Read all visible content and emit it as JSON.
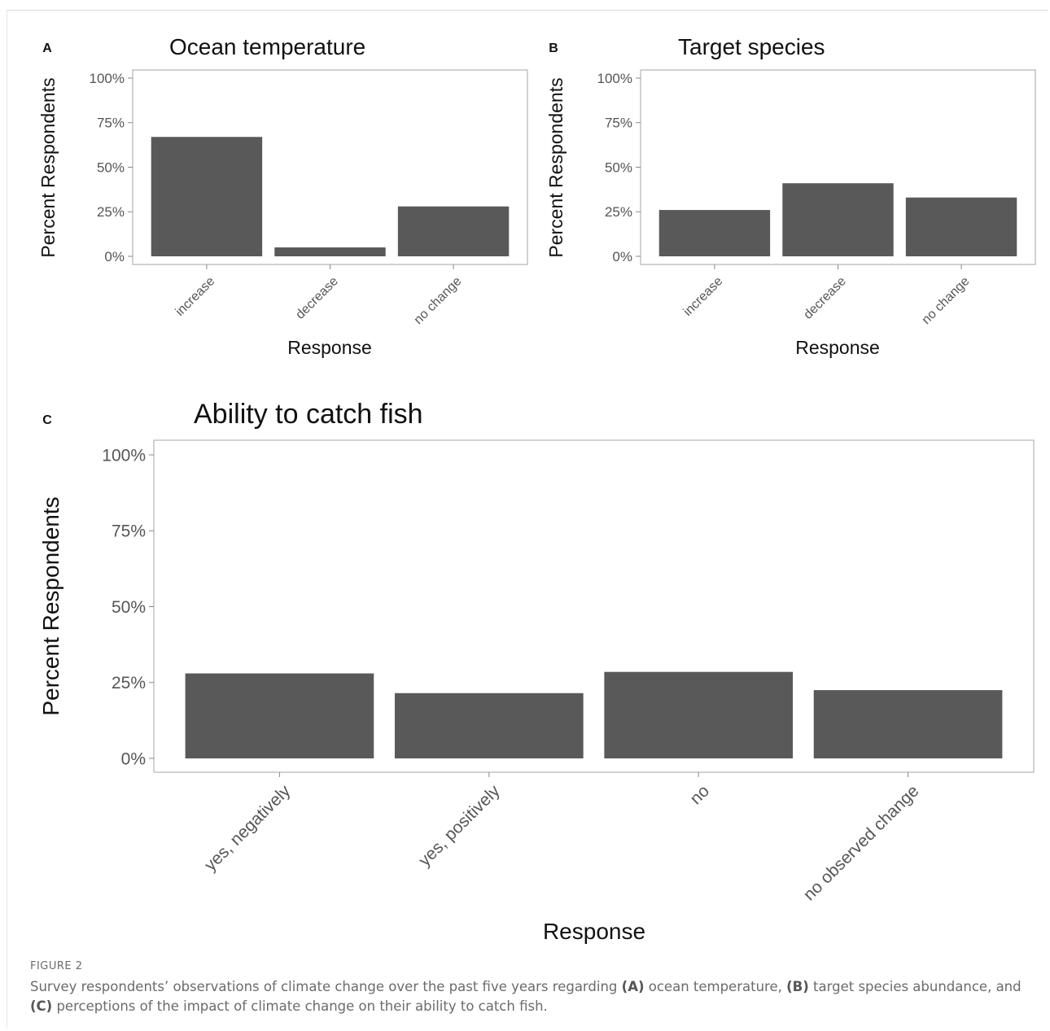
{
  "chart_data": [
    {
      "panel_label": "A",
      "type": "bar",
      "title": "Ocean temperature",
      "xlabel": "Response",
      "ylabel": "Percent Respondents",
      "categories": [
        "increase",
        "decrease",
        "no change"
      ],
      "values": [
        67,
        5,
        28
      ],
      "ylim": [
        0,
        100
      ],
      "yticks": [
        "0%",
        "25%",
        "50%",
        "75%",
        "100%"
      ],
      "bar_color": "#595959",
      "grid": false
    },
    {
      "panel_label": "B",
      "type": "bar",
      "title": "Target species",
      "xlabel": "Response",
      "ylabel": "Percent Respondents",
      "categories": [
        "increase",
        "decrease",
        "no change"
      ],
      "values": [
        26,
        41,
        33
      ],
      "ylim": [
        0,
        100
      ],
      "yticks": [
        "0%",
        "25%",
        "50%",
        "75%",
        "100%"
      ],
      "bar_color": "#595959",
      "grid": false
    },
    {
      "panel_label": "C",
      "type": "bar",
      "title": "Ability to catch fish",
      "xlabel": "Response",
      "ylabel": "Percent Respondents",
      "categories": [
        "yes, negatively",
        "yes, positively",
        "no",
        "no observed change"
      ],
      "values": [
        28,
        21.5,
        28.5,
        22.5
      ],
      "ylim": [
        0,
        100
      ],
      "yticks": [
        "0%",
        "25%",
        "50%",
        "75%",
        "100%"
      ],
      "bar_color": "#595959",
      "grid": false
    }
  ],
  "caption": {
    "label": "FIGURE 2",
    "part1": "Survey respondents’ observations of climate change over the past five years regarding ",
    "ref_a": "(A)",
    "part2": " ocean temperature, ",
    "ref_b": "(B)",
    "part3": " target species abundance, and ",
    "ref_c": "(C)",
    "part4": " perceptions of the impact of climate change on their ability to catch fish."
  }
}
